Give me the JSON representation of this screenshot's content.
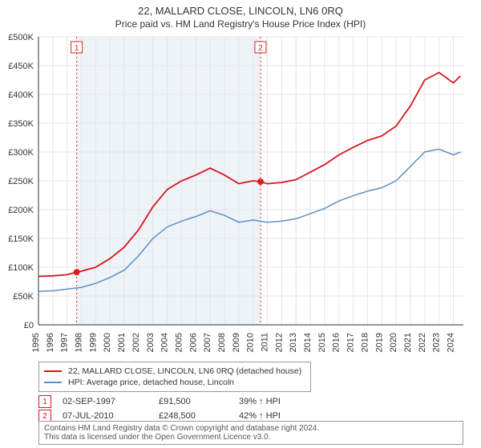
{
  "title_line1": "22, MALLARD CLOSE, LINCOLN, LN6 0RQ",
  "title_line2": "Price paid vs. HM Land Registry's House Price Index (HPI)",
  "chart": {
    "type": "line",
    "background_color": "#ffffff",
    "grid_color": "#e5e5e5",
    "axis_color": "#333333",
    "title_fontsize": 13,
    "subtitle_fontsize": 12,
    "tick_fontsize": 11,
    "x_years": [
      1995,
      1996,
      1997,
      1998,
      1999,
      2000,
      2001,
      2002,
      2003,
      2004,
      2005,
      2006,
      2007,
      2008,
      2009,
      2010,
      2011,
      2012,
      2013,
      2014,
      2015,
      2016,
      2017,
      2018,
      2019,
      2020,
      2021,
      2022,
      2023,
      2024
    ],
    "ylim": [
      0,
      500000
    ],
    "ytick_step": 50000,
    "ytick_labels": [
      "£0",
      "£50K",
      "£100K",
      "£150K",
      "£200K",
      "£250K",
      "£300K",
      "£350K",
      "£400K",
      "£450K",
      "£500K"
    ],
    "shade_band": {
      "x_from": 1997.67,
      "x_to": 2010.52,
      "color": "#eef3f8"
    },
    "sale_markers": [
      {
        "n": 1,
        "x": 1997.67,
        "y": 91500,
        "line_color": "#e02020",
        "line_dash": "2,3"
      },
      {
        "n": 2,
        "x": 2010.52,
        "y": 248500,
        "line_color": "#e02020",
        "line_dash": "2,3"
      }
    ],
    "series": [
      {
        "name": "22, MALLARD CLOSE, LINCOLN, LN6 0RQ (detached house)",
        "color": "#d9141e",
        "width": 1.8,
        "points": [
          [
            1995,
            84000
          ],
          [
            1996,
            85000
          ],
          [
            1997,
            87000
          ],
          [
            1997.67,
            91500
          ],
          [
            1998,
            93000
          ],
          [
            1999,
            100000
          ],
          [
            2000,
            115000
          ],
          [
            2001,
            135000
          ],
          [
            2002,
            165000
          ],
          [
            2003,
            205000
          ],
          [
            2004,
            235000
          ],
          [
            2005,
            250000
          ],
          [
            2006,
            260000
          ],
          [
            2007,
            272000
          ],
          [
            2008,
            260000
          ],
          [
            2009,
            245000
          ],
          [
            2010,
            250000
          ],
          [
            2010.52,
            248500
          ],
          [
            2011,
            245000
          ],
          [
            2012,
            247000
          ],
          [
            2013,
            252000
          ],
          [
            2014,
            265000
          ],
          [
            2015,
            278000
          ],
          [
            2016,
            295000
          ],
          [
            2017,
            308000
          ],
          [
            2018,
            320000
          ],
          [
            2019,
            328000
          ],
          [
            2020,
            345000
          ],
          [
            2021,
            380000
          ],
          [
            2022,
            425000
          ],
          [
            2023,
            438000
          ],
          [
            2024,
            420000
          ],
          [
            2024.5,
            432000
          ]
        ]
      },
      {
        "name": "HPI: Average price, detached house, Lincoln",
        "color": "#5b8fc7",
        "width": 1.5,
        "points": [
          [
            1995,
            58000
          ],
          [
            1996,
            59000
          ],
          [
            1997,
            62000
          ],
          [
            1998,
            65000
          ],
          [
            1999,
            72000
          ],
          [
            2000,
            82000
          ],
          [
            2001,
            95000
          ],
          [
            2002,
            120000
          ],
          [
            2003,
            150000
          ],
          [
            2004,
            170000
          ],
          [
            2005,
            180000
          ],
          [
            2006,
            188000
          ],
          [
            2007,
            198000
          ],
          [
            2008,
            190000
          ],
          [
            2009,
            178000
          ],
          [
            2010,
            182000
          ],
          [
            2011,
            178000
          ],
          [
            2012,
            180000
          ],
          [
            2013,
            184000
          ],
          [
            2014,
            193000
          ],
          [
            2015,
            202000
          ],
          [
            2016,
            215000
          ],
          [
            2017,
            224000
          ],
          [
            2018,
            232000
          ],
          [
            2019,
            238000
          ],
          [
            2020,
            250000
          ],
          [
            2021,
            275000
          ],
          [
            2022,
            300000
          ],
          [
            2023,
            305000
          ],
          [
            2024,
            295000
          ],
          [
            2024.5,
            300000
          ]
        ]
      }
    ]
  },
  "legend": {
    "items": [
      {
        "color": "#d9141e",
        "label": "22, MALLARD CLOSE, LINCOLN, LN6 0RQ (detached house)"
      },
      {
        "color": "#5b8fc7",
        "label": "HPI: Average price, detached house, Lincoln"
      }
    ]
  },
  "sales_rows": [
    {
      "n": "1",
      "date": "02-SEP-1997",
      "price": "£91,500",
      "delta": "39% ↑ HPI",
      "border_color": "#d9141e"
    },
    {
      "n": "2",
      "date": "07-JUL-2010",
      "price": "£248,500",
      "delta": "42% ↑ HPI",
      "border_color": "#d9141e"
    }
  ],
  "footer_line1": "Contains HM Land Registry data © Crown copyright and database right 2024.",
  "footer_line2": "This data is licensed under the Open Government Licence v3.0."
}
